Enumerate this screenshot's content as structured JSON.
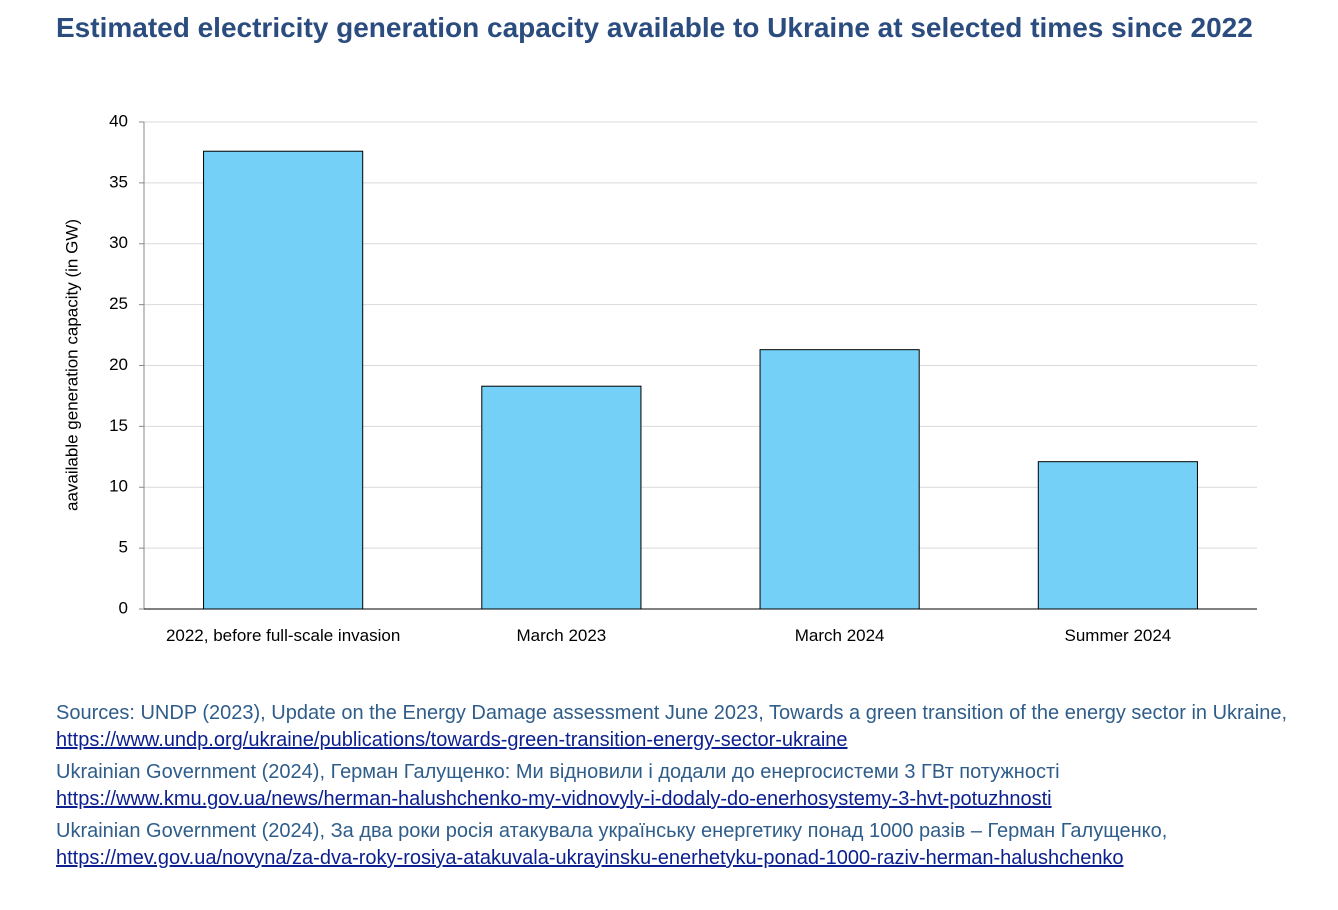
{
  "chart_data": {
    "type": "bar",
    "title": "Estimated electricity generation capacity available to Ukraine at selected times since 2022",
    "y_label": "aavailable generation capacity (in GW)",
    "categories": [
      "2022, before full-scale invasion",
      "March 2023",
      "March 2024",
      "Summer 2024"
    ],
    "values": [
      37.6,
      18.3,
      21.3,
      12.1
    ],
    "color": "#75d0f7",
    "ylim": [
      0,
      40
    ],
    "yticks": [
      0,
      5,
      10,
      15,
      20,
      25,
      30,
      35,
      40
    ],
    "grid": true
  },
  "sources": [
    {
      "text": "Sources: UNDP (2023), Update on the Energy Damage assessment June 2023, Towards a green transition of the energy sector in Ukraine, ",
      "link": "https://www.undp.org/ukraine/publications/towards-green-transition-energy-sector-ukraine"
    },
    {
      "text": "Ukrainian Government (2024), Герман Галущенко: Ми відновили і додали до енергосистеми 3 ГВт потужності ",
      "link": "https://www.kmu.gov.ua/news/herman-halushchenko-my-vidnovyly-i-dodaly-do-enerhosystemy-3-hvt-potuzhnosti"
    },
    {
      "text": "Ukrainian Government (2024), За два роки росія атакувала українську енергетику понад 1000 разів – Герман Галущенко, ",
      "link": "https://mev.gov.ua/novyna/za-dva-roky-rosiya-atakuvala-ukrayinsku-enerhetyku-ponad-1000-raziv-herman-halushchenko"
    }
  ]
}
